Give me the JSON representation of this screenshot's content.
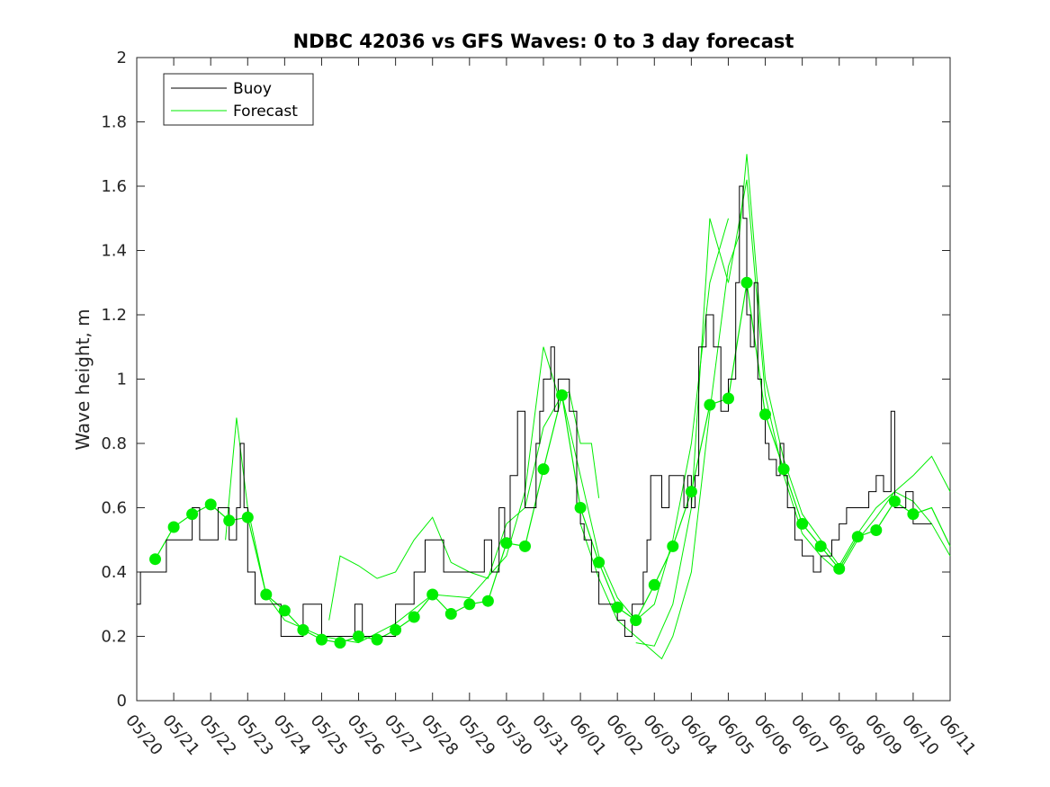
{
  "chart_data": {
    "type": "line",
    "title": "NDBC 42036 vs GFS Waves: 0 to 3 day forecast",
    "ylabel": "Wave height, m",
    "xlabel": "",
    "xlim": [
      0,
      22
    ],
    "ylim": [
      0,
      2
    ],
    "yticks": [
      0,
      0.2,
      0.4,
      0.6,
      0.8,
      1,
      1.2,
      1.4,
      1.6,
      1.8,
      2
    ],
    "ytick_labels": [
      "0",
      "0.2",
      "0.4",
      "0.6",
      "0.8",
      "1",
      "1.2",
      "1.4",
      "1.6",
      "1.8",
      "2"
    ],
    "xticks": [
      0,
      1,
      2,
      3,
      4,
      5,
      6,
      7,
      8,
      9,
      10,
      11,
      12,
      13,
      14,
      15,
      16,
      17,
      18,
      19,
      20,
      21,
      22
    ],
    "xtick_labels": [
      "05/20",
      "05/21",
      "05/22",
      "05/23",
      "05/24",
      "05/25",
      "05/26",
      "05/27",
      "05/28",
      "05/29",
      "05/30",
      "05/31",
      "06/01",
      "06/02",
      "06/03",
      "06/04",
      "06/05",
      "06/06",
      "06/07",
      "06/08",
      "06/09",
      "06/10",
      "06/11"
    ],
    "grid": false,
    "legend": {
      "placement": "top-left",
      "entries": [
        {
          "label": "Buoy",
          "color": "#000000"
        },
        {
          "label": "Forecast",
          "color": "#00ee00"
        }
      ]
    },
    "series": [
      {
        "name": "Buoy",
        "color": "#000000",
        "style": "step",
        "x": [
          0,
          0.1,
          0.5,
          0.8,
          1.2,
          1.5,
          1.7,
          2.2,
          2.5,
          2.7,
          2.8,
          2.9,
          3.0,
          3.2,
          3.5,
          3.9,
          4.1,
          4.5,
          5.0,
          5.5,
          5.8,
          5.9,
          6.1,
          6.5,
          6.8,
          7.0,
          7.5,
          7.8,
          8.1,
          8.3,
          8.5,
          8.8,
          9.0,
          9.4,
          9.6,
          9.8,
          9.95,
          10.1,
          10.3,
          10.5,
          10.6,
          10.8,
          10.9,
          11.0,
          11.2,
          11.3,
          11.4,
          11.5,
          11.7,
          11.9,
          12.0,
          12.1,
          12.3,
          12.5,
          12.7,
          13.0,
          13.2,
          13.4,
          13.7,
          13.8,
          13.9,
          14.0,
          14.2,
          14.4,
          14.6,
          14.8,
          14.9,
          15.0,
          15.1,
          15.2,
          15.4,
          15.5,
          15.6,
          15.8,
          16.0,
          16.2,
          16.3,
          16.4,
          16.5,
          16.6,
          16.7,
          16.8,
          16.9,
          17.0,
          17.1,
          17.3,
          17.4,
          17.5,
          17.6,
          17.8,
          18.0,
          18.3,
          18.5,
          18.8,
          19.0,
          19.2,
          19.5,
          19.8,
          20.0,
          20.2,
          20.4,
          20.5,
          20.6,
          20.8,
          21.0,
          21.2
        ],
        "y": [
          0.3,
          0.4,
          0.4,
          0.5,
          0.5,
          0.6,
          0.5,
          0.6,
          0.5,
          0.6,
          0.8,
          0.6,
          0.4,
          0.3,
          0.3,
          0.2,
          0.2,
          0.3,
          0.2,
          0.2,
          0.2,
          0.3,
          0.2,
          0.2,
          0.2,
          0.3,
          0.4,
          0.5,
          0.5,
          0.4,
          0.4,
          0.4,
          0.4,
          0.5,
          0.4,
          0.6,
          0.5,
          0.7,
          0.9,
          0.6,
          0.6,
          0.8,
          0.9,
          1.0,
          1.1,
          0.9,
          1.0,
          1.0,
          0.9,
          0.6,
          0.55,
          0.5,
          0.4,
          0.3,
          0.3,
          0.25,
          0.2,
          0.3,
          0.4,
          0.5,
          0.7,
          0.7,
          0.6,
          0.7,
          0.7,
          0.6,
          0.7,
          0.6,
          0.7,
          1.1,
          1.2,
          1.2,
          1.1,
          0.9,
          1.0,
          1.3,
          1.6,
          1.5,
          1.2,
          1.1,
          1.3,
          1.0,
          0.9,
          0.8,
          0.75,
          0.7,
          0.8,
          0.7,
          0.6,
          0.5,
          0.45,
          0.4,
          0.45,
          0.5,
          0.55,
          0.6,
          0.6,
          0.65,
          0.7,
          0.65,
          0.9,
          0.6,
          0.6,
          0.65,
          0.55,
          0.55
        ]
      },
      {
        "name": "Forecast",
        "color": "#00ee00",
        "x": [
          0.5,
          1,
          1.5,
          2,
          2.5,
          3,
          3.5,
          4,
          4.5,
          5,
          5.5,
          6,
          6.5,
          7,
          7.5,
          8,
          8.5,
          9,
          9.5,
          10,
          10.5,
          11,
          11.5,
          12,
          12.5,
          13,
          13.5,
          14,
          14.5,
          15,
          15.5,
          16,
          16.5,
          17,
          17.5,
          18,
          18.5,
          19,
          19.5,
          20,
          20.5,
          21,
          21.5,
          22
        ],
        "y": [
          0.44,
          0.54,
          0.58,
          0.61,
          0.56,
          0.57,
          0.33,
          0.28,
          0.22,
          0.19,
          0.18,
          0.2,
          0.19,
          0.22,
          0.26,
          0.33,
          0.27,
          0.3,
          0.31,
          0.49,
          0.48,
          0.72,
          0.95,
          0.6,
          0.43,
          0.29,
          0.25,
          0.36,
          0.48,
          0.65,
          0.92,
          0.94,
          1.3,
          0.89,
          0.72,
          0.55,
          0.48,
          0.41,
          0.51,
          0.53,
          0.62,
          0.58,
          0.6,
          0.48
        ]
      }
    ],
    "forecast_markers": {
      "x": [
        0.5,
        1,
        1.5,
        2,
        2.5,
        3,
        3.5,
        4,
        4.5,
        5,
        5.5,
        6,
        6.5,
        7,
        7.5,
        8,
        8.5,
        9,
        9.5,
        10,
        10.5,
        11,
        11.5,
        12,
        12.5,
        13,
        13.5,
        14,
        14.5,
        15,
        15.5,
        16,
        16.5,
        17,
        17.5,
        18,
        18.5,
        19,
        19.5,
        20,
        20.5,
        21
      ],
      "y": [
        0.44,
        0.54,
        0.58,
        0.61,
        0.56,
        0.57,
        0.33,
        0.28,
        0.22,
        0.19,
        0.18,
        0.2,
        0.19,
        0.22,
        0.26,
        0.33,
        0.27,
        0.3,
        0.31,
        0.49,
        0.48,
        0.72,
        0.95,
        0.6,
        0.43,
        0.29,
        0.25,
        0.36,
        0.48,
        0.65,
        0.92,
        0.94,
        1.3,
        0.89,
        0.72,
        0.55,
        0.48,
        0.41,
        0.51,
        0.53,
        0.62,
        0.58
      ]
    },
    "forecast_runs": [
      {
        "x": [
          2.4,
          2.7,
          3.0,
          3.5,
          4,
          5,
          6,
          7,
          8,
          9,
          10,
          10.5,
          11,
          11.4,
          11.7,
          12.0,
          12.3,
          12.5
        ],
        "y": [
          0.5,
          0.88,
          0.6,
          0.33,
          0.25,
          0.2,
          0.18,
          0.24,
          0.33,
          0.32,
          0.45,
          0.65,
          1.1,
          0.95,
          0.96,
          0.8,
          0.8,
          0.63
        ]
      },
      {
        "x": [
          5.2,
          5.5,
          6,
          6.5,
          7,
          7.5,
          8,
          8.5,
          9,
          9.5,
          10,
          10.5,
          11,
          11.5,
          12,
          12.5,
          13,
          13.5,
          14,
          14.5,
          15,
          15.5,
          16
        ],
        "y": [
          0.25,
          0.45,
          0.42,
          0.38,
          0.4,
          0.5,
          0.57,
          0.43,
          0.4,
          0.38,
          0.55,
          0.6,
          0.85,
          0.95,
          0.7,
          0.45,
          0.32,
          0.25,
          0.3,
          0.5,
          0.8,
          1.3,
          1.5
        ]
      },
      {
        "x": [
          12,
          12.5,
          13,
          13.5,
          14,
          14.2,
          14.5,
          15,
          15.5,
          16,
          16.3,
          16.5,
          17,
          17.5,
          18,
          18.5,
          19,
          19.5,
          20,
          20.5,
          21,
          21.5,
          22
        ],
        "y": [
          0.55,
          0.38,
          0.25,
          0.2,
          0.15,
          0.13,
          0.2,
          0.4,
          0.9,
          1.35,
          1.45,
          1.7,
          1.0,
          0.75,
          0.58,
          0.5,
          0.42,
          0.52,
          0.6,
          0.65,
          0.7,
          0.76,
          0.65
        ]
      },
      {
        "x": [
          13.5,
          14,
          14.5,
          15,
          15.5,
          16,
          16.5,
          17,
          17.5,
          18,
          18.5,
          19,
          19.5,
          20,
          20.5,
          21,
          21.5,
          22
        ],
        "y": [
          0.18,
          0.17,
          0.3,
          0.6,
          1.5,
          1.3,
          1.62,
          0.95,
          0.7,
          0.52,
          0.45,
          0.4,
          0.5,
          0.57,
          0.65,
          0.62,
          0.55,
          0.45
        ]
      }
    ]
  }
}
